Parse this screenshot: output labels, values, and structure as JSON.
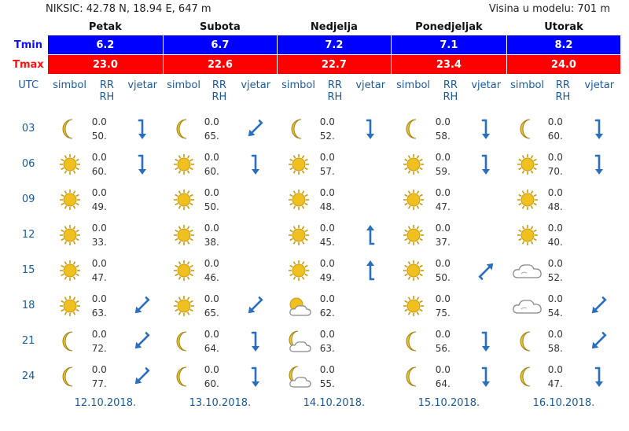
{
  "location": "NIKSIC: 42.78 N, 18.94 E, 647 m",
  "model_height": "Visina u modelu: 701 m",
  "labels": {
    "tmin": "Tmin",
    "tmax": "Tmax",
    "utc": "UTC",
    "simbol": "simbol",
    "rr": "RR",
    "rh": "RH",
    "vjetar": "vjetar"
  },
  "colors": {
    "tmin_bg": "#0000ff",
    "tmax_bg": "#ff0000",
    "accent": "#1a5a9a",
    "sun": "#f0c020",
    "moon": "#e8c830",
    "arrow": "#2a6ec0"
  },
  "hours": [
    "03",
    "06",
    "09",
    "12",
    "15",
    "18",
    "21",
    "24"
  ],
  "days": [
    {
      "name": "Petak",
      "tmin": "6.2",
      "tmax": "23.0",
      "date": "12.10.2018.",
      "slots": [
        {
          "icon": "moon-icon",
          "rr": "0.0",
          "rh": "50.",
          "wind": "S"
        },
        {
          "icon": "sun-icon",
          "rr": "0.0",
          "rh": "60.",
          "wind": "S"
        },
        {
          "icon": "sun-icon",
          "rr": "0.0",
          "rh": "49.",
          "wind": ""
        },
        {
          "icon": "sun-icon",
          "rr": "0.0",
          "rh": "33.",
          "wind": ""
        },
        {
          "icon": "sun-icon",
          "rr": "0.0",
          "rh": "47.",
          "wind": ""
        },
        {
          "icon": "sun-icon",
          "rr": "0.0",
          "rh": "63.",
          "wind": "SW"
        },
        {
          "icon": "moon-icon",
          "rr": "0.0",
          "rh": "72.",
          "wind": "SW"
        },
        {
          "icon": "moon-icon",
          "rr": "0.0",
          "rh": "77.",
          "wind": "SW"
        }
      ]
    },
    {
      "name": "Subota",
      "tmin": "6.7",
      "tmax": "22.6",
      "date": "13.10.2018.",
      "slots": [
        {
          "icon": "moon-icon",
          "rr": "0.0",
          "rh": "65.",
          "wind": "SW"
        },
        {
          "icon": "sun-icon",
          "rr": "0.0",
          "rh": "60.",
          "wind": "S"
        },
        {
          "icon": "sun-icon",
          "rr": "0.0",
          "rh": "50.",
          "wind": ""
        },
        {
          "icon": "sun-icon",
          "rr": "0.0",
          "rh": "38.",
          "wind": ""
        },
        {
          "icon": "sun-icon",
          "rr": "0.0",
          "rh": "46.",
          "wind": ""
        },
        {
          "icon": "sun-icon",
          "rr": "0.0",
          "rh": "65.",
          "wind": "SW"
        },
        {
          "icon": "moon-icon",
          "rr": "0.0",
          "rh": "64.",
          "wind": "S"
        },
        {
          "icon": "moon-icon",
          "rr": "0.0",
          "rh": "60.",
          "wind": "S"
        }
      ]
    },
    {
      "name": "Nedjelja",
      "tmin": "7.2",
      "tmax": "22.7",
      "date": "14.10.2018.",
      "slots": [
        {
          "icon": "moon-icon",
          "rr": "0.0",
          "rh": "52.",
          "wind": "S"
        },
        {
          "icon": "sun-icon",
          "rr": "0.0",
          "rh": "57.",
          "wind": ""
        },
        {
          "icon": "sun-icon",
          "rr": "0.0",
          "rh": "48.",
          "wind": ""
        },
        {
          "icon": "sun-icon",
          "rr": "0.0",
          "rh": "45.",
          "wind": "N"
        },
        {
          "icon": "sun-icon",
          "rr": "0.0",
          "rh": "49.",
          "wind": "N"
        },
        {
          "icon": "sun-cloud-icon",
          "rr": "0.0",
          "rh": "62.",
          "wind": ""
        },
        {
          "icon": "moon-cloud-icon",
          "rr": "0.0",
          "rh": "63.",
          "wind": ""
        },
        {
          "icon": "moon-cloud-icon",
          "rr": "0.0",
          "rh": "55.",
          "wind": ""
        }
      ]
    },
    {
      "name": "Ponedjeljak",
      "tmin": "7.1",
      "tmax": "23.4",
      "date": "15.10.2018.",
      "slots": [
        {
          "icon": "moon-icon",
          "rr": "0.0",
          "rh": "58.",
          "wind": "S"
        },
        {
          "icon": "sun-icon",
          "rr": "0.0",
          "rh": "59.",
          "wind": "S"
        },
        {
          "icon": "sun-icon",
          "rr": "0.0",
          "rh": "47.",
          "wind": ""
        },
        {
          "icon": "sun-icon",
          "rr": "0.0",
          "rh": "37.",
          "wind": ""
        },
        {
          "icon": "sun-icon",
          "rr": "0.0",
          "rh": "50.",
          "wind": "NE"
        },
        {
          "icon": "sun-icon",
          "rr": "0.0",
          "rh": "75.",
          "wind": ""
        },
        {
          "icon": "moon-icon",
          "rr": "0.0",
          "rh": "56.",
          "wind": "S"
        },
        {
          "icon": "moon-icon",
          "rr": "0.0",
          "rh": "64.",
          "wind": "S"
        }
      ]
    },
    {
      "name": "Utorak",
      "tmin": "8.2",
      "tmax": "24.0",
      "date": "16.10.2018.",
      "slots": [
        {
          "icon": "moon-icon",
          "rr": "0.0",
          "rh": "60.",
          "wind": "S"
        },
        {
          "icon": "sun-icon",
          "rr": "0.0",
          "rh": "70.",
          "wind": "S"
        },
        {
          "icon": "sun-icon",
          "rr": "0.0",
          "rh": "48.",
          "wind": ""
        },
        {
          "icon": "sun-icon",
          "rr": "0.0",
          "rh": "40.",
          "wind": ""
        },
        {
          "icon": "cloud-icon",
          "rr": "0.0",
          "rh": "52.",
          "wind": ""
        },
        {
          "icon": "cloud-icon",
          "rr": "0.0",
          "rh": "54.",
          "wind": "SW"
        },
        {
          "icon": "moon-icon",
          "rr": "0.0",
          "rh": "58.",
          "wind": "SW"
        },
        {
          "icon": "moon-icon",
          "rr": "0.0",
          "rh": "47.",
          "wind": "S"
        }
      ]
    }
  ]
}
